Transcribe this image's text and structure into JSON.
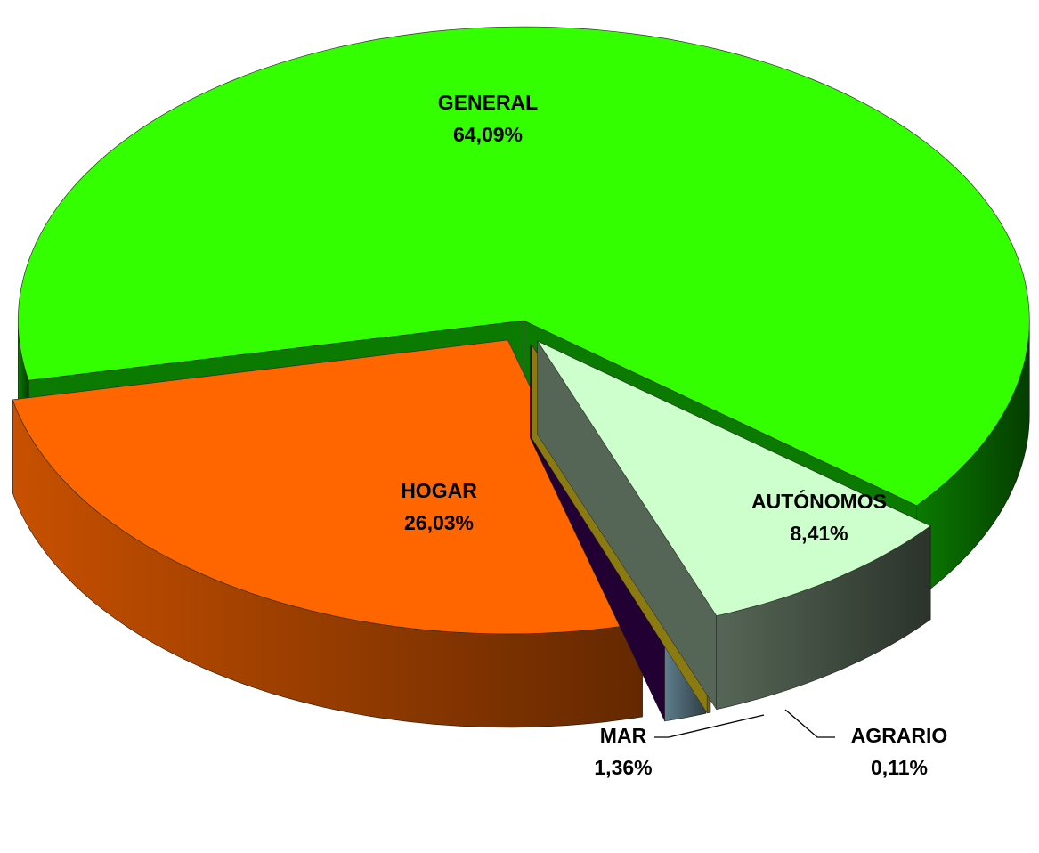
{
  "chart_data": {
    "type": "pie3d",
    "categories": [
      "AUTÓNOMOS",
      "AGRARIO",
      "MAR",
      "HOGAR",
      "GENERAL"
    ],
    "values": [
      8.41,
      0.11,
      1.36,
      26.03,
      64.09
    ],
    "value_labels": [
      "8,41%",
      "0,11%",
      "1,36%",
      "26,03%",
      "64,09%"
    ],
    "colors": [
      "#ccffcc",
      "#ffee55",
      "#ccf4ff",
      "#ff6600",
      "#33ff00"
    ],
    "side_colors": [
      "#566656",
      "#8a7a10",
      "#5e7d8c",
      "#c85000",
      "#0a7a00"
    ]
  }
}
